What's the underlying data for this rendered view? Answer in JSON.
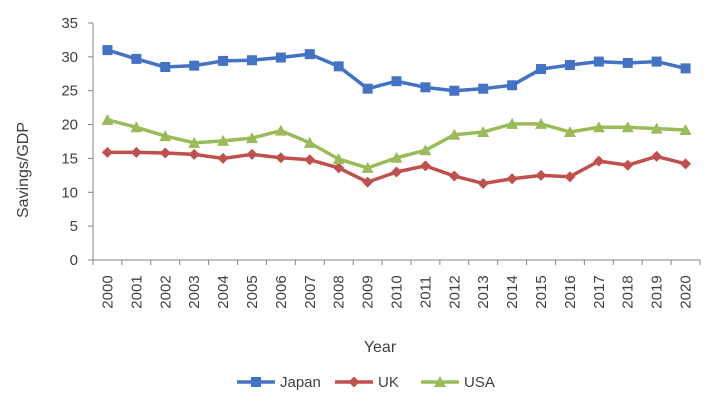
{
  "chart_data": {
    "type": "line",
    "title": "",
    "xlabel": "Year",
    "ylabel": "Savings/GDP",
    "ylim": [
      0,
      35
    ],
    "yticks": [
      0,
      5,
      10,
      15,
      20,
      25,
      30,
      35
    ],
    "grid": false,
    "legend_position": "bottom",
    "categories": [
      "2000",
      "2001",
      "2002",
      "2003",
      "2004",
      "2005",
      "2006",
      "2007",
      "2008",
      "2009",
      "2010",
      "2011",
      "2012",
      "2013",
      "2014",
      "2015",
      "2016",
      "2017",
      "2018",
      "2019",
      "2020"
    ],
    "series": [
      {
        "name": "Japan",
        "color": "#4472C4",
        "marker": "square",
        "values": [
          31.0,
          29.7,
          28.5,
          28.7,
          29.4,
          29.5,
          29.9,
          30.4,
          28.6,
          25.3,
          26.4,
          25.5,
          25.0,
          25.3,
          25.8,
          28.2,
          28.8,
          29.3,
          29.1,
          29.3,
          28.3
        ]
      },
      {
        "name": "UK",
        "color": "#C0504D",
        "marker": "diamond",
        "values": [
          15.9,
          15.9,
          15.8,
          15.6,
          15.0,
          15.6,
          15.1,
          14.8,
          13.6,
          11.5,
          13.0,
          13.9,
          12.4,
          11.3,
          12.0,
          12.5,
          12.3,
          14.6,
          14.0,
          15.3,
          14.2
        ]
      },
      {
        "name": "USA",
        "color": "#9BBB59",
        "marker": "triangle",
        "values": [
          20.7,
          19.6,
          18.3,
          17.3,
          17.6,
          18.0,
          19.1,
          17.3,
          14.9,
          13.6,
          15.1,
          16.2,
          18.5,
          18.9,
          20.1,
          20.1,
          18.9,
          19.6,
          19.6,
          19.4,
          19.2
        ]
      }
    ]
  }
}
